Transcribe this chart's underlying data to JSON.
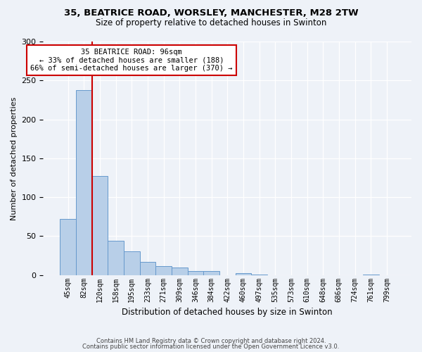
{
  "title1": "35, BEATRICE ROAD, WORSLEY, MANCHESTER, M28 2TW",
  "title2": "Size of property relative to detached houses in Swinton",
  "xlabel": "Distribution of detached houses by size in Swinton",
  "ylabel": "Number of detached properties",
  "bin_labels": [
    "45sqm",
    "82sqm",
    "120sqm",
    "158sqm",
    "195sqm",
    "233sqm",
    "271sqm",
    "309sqm",
    "346sqm",
    "384sqm",
    "422sqm",
    "460sqm",
    "497sqm",
    "535sqm",
    "573sqm",
    "610sqm",
    "648sqm",
    "686sqm",
    "724sqm",
    "761sqm",
    "799sqm"
  ],
  "bar_values": [
    72,
    238,
    127,
    44,
    30,
    17,
    11,
    10,
    5,
    5,
    0,
    2,
    1,
    0,
    0,
    0,
    0,
    0,
    0,
    1,
    0
  ],
  "bar_color": "#b8cfe8",
  "bar_edge_color": "#6699cc",
  "vline_color": "#cc0000",
  "annotation_title": "35 BEATRICE ROAD: 96sqm",
  "annotation_line1": "← 33% of detached houses are smaller (188)",
  "annotation_line2": "66% of semi-detached houses are larger (370) →",
  "annotation_box_facecolor": "#ffffff",
  "annotation_box_edgecolor": "#cc0000",
  "ylim": [
    0,
    300
  ],
  "yticks": [
    0,
    50,
    100,
    150,
    200,
    250,
    300
  ],
  "footer1": "Contains HM Land Registry data © Crown copyright and database right 2024.",
  "footer2": "Contains public sector information licensed under the Open Government Licence v3.0.",
  "bg_color": "#eef2f8"
}
